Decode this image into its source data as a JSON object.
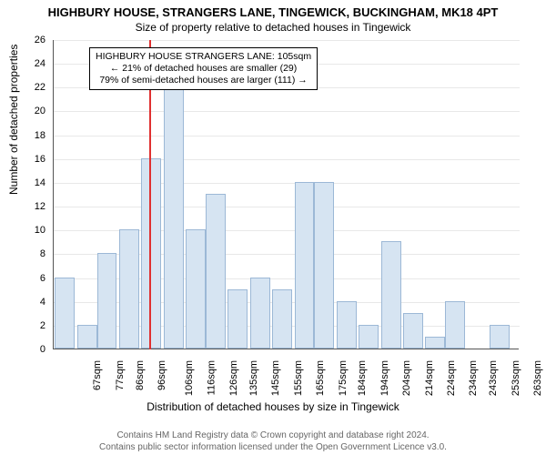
{
  "title": "HIGHBURY HOUSE, STRANGERS LANE, TINGEWICK, BUCKINGHAM, MK18 4PT",
  "subtitle": "Size of property relative to detached houses in Tingewick",
  "ylabel": "Number of detached properties",
  "xlabel": "Distribution of detached houses by size in Tingewick",
  "chart": {
    "type": "histogram",
    "ylim": [
      0,
      26
    ],
    "ytick_step": 2,
    "background_color": "#ffffff",
    "grid_color": "#e8e8e8",
    "bar_fill": "#d6e4f2",
    "bar_stroke": "#9cb8d6",
    "axis_color": "#555555",
    "refline_color": "#e03030",
    "refline_x": 105,
    "x_min": 62,
    "x_max": 272,
    "bins": [
      {
        "label": "67sqm",
        "x": 67,
        "value": 6
      },
      {
        "label": "77sqm",
        "x": 77,
        "value": 2
      },
      {
        "label": "86sqm",
        "x": 86,
        "value": 8
      },
      {
        "label": "96sqm",
        "x": 96,
        "value": 10
      },
      {
        "label": "106sqm",
        "x": 106,
        "value": 16
      },
      {
        "label": "116sqm",
        "x": 116,
        "value": 22
      },
      {
        "label": "126sqm",
        "x": 126,
        "value": 10
      },
      {
        "label": "135sqm",
        "x": 135,
        "value": 13
      },
      {
        "label": "145sqm",
        "x": 145,
        "value": 5
      },
      {
        "label": "155sqm",
        "x": 155,
        "value": 6
      },
      {
        "label": "165sqm",
        "x": 165,
        "value": 5
      },
      {
        "label": "175sqm",
        "x": 175,
        "value": 14
      },
      {
        "label": "184sqm",
        "x": 184,
        "value": 14
      },
      {
        "label": "194sqm",
        "x": 194,
        "value": 4
      },
      {
        "label": "204sqm",
        "x": 204,
        "value": 2
      },
      {
        "label": "214sqm",
        "x": 214,
        "value": 9
      },
      {
        "label": "224sqm",
        "x": 224,
        "value": 3
      },
      {
        "label": "234sqm",
        "x": 234,
        "value": 1
      },
      {
        "label": "243sqm",
        "x": 243,
        "value": 4
      },
      {
        "label": "253sqm",
        "x": 253,
        "value": 0
      },
      {
        "label": "263sqm",
        "x": 263,
        "value": 2
      }
    ]
  },
  "annotation": {
    "line1": "HIGHBURY HOUSE STRANGERS LANE: 105sqm",
    "line2": "← 21% of detached houses are smaller (29)",
    "line3": "79% of semi-detached houses are larger (111) →"
  },
  "footer": {
    "line1": "Contains HM Land Registry data © Crown copyright and database right 2024.",
    "line2": "Contains public sector information licensed under the Open Government Licence v3.0."
  }
}
